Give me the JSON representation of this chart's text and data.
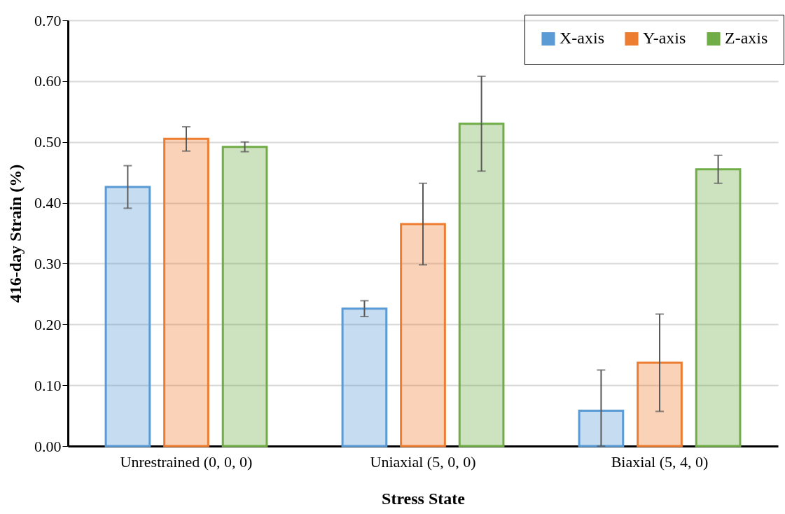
{
  "chart_data": {
    "type": "bar",
    "xlabel": "Stress State",
    "ylabel": "416-day Strain (%)",
    "categories": [
      "Unrestrained (0, 0, 0)",
      "Uniaxial (5, 0, 0)",
      "Biaxial (5, 4, 0)"
    ],
    "series": [
      {
        "name": "X-axis",
        "color": "#5b9bd5",
        "values": [
          0.426,
          0.226,
          0.058
        ],
        "errors": [
          0.035,
          0.013,
          [
            0,
            0.125
          ]
        ]
      },
      {
        "name": "Y-axis",
        "color": "#ed7d31",
        "values": [
          0.505,
          0.365,
          0.137
        ],
        "errors": [
          0.02,
          0.067,
          0.08
        ]
      },
      {
        "name": "Z-axis",
        "color": "#70ad47",
        "values": [
          0.492,
          0.53,
          0.455
        ],
        "errors": [
          0.008,
          0.078,
          0.023
        ]
      }
    ],
    "ylim": [
      0,
      0.7
    ],
    "yticks": [
      {
        "value": 0,
        "label": "0.00"
      },
      {
        "value": 0.1,
        "label": "0.10"
      },
      {
        "value": 0.2,
        "label": "0.20"
      },
      {
        "value": 0.3,
        "label": "0.30"
      },
      {
        "value": 0.4,
        "label": "0.40"
      },
      {
        "value": 0.5,
        "label": "0.50"
      },
      {
        "value": 0.6,
        "label": "0.60"
      },
      {
        "value": 0.7,
        "label": "0.70"
      }
    ],
    "grid": "y",
    "legend": "top right"
  }
}
